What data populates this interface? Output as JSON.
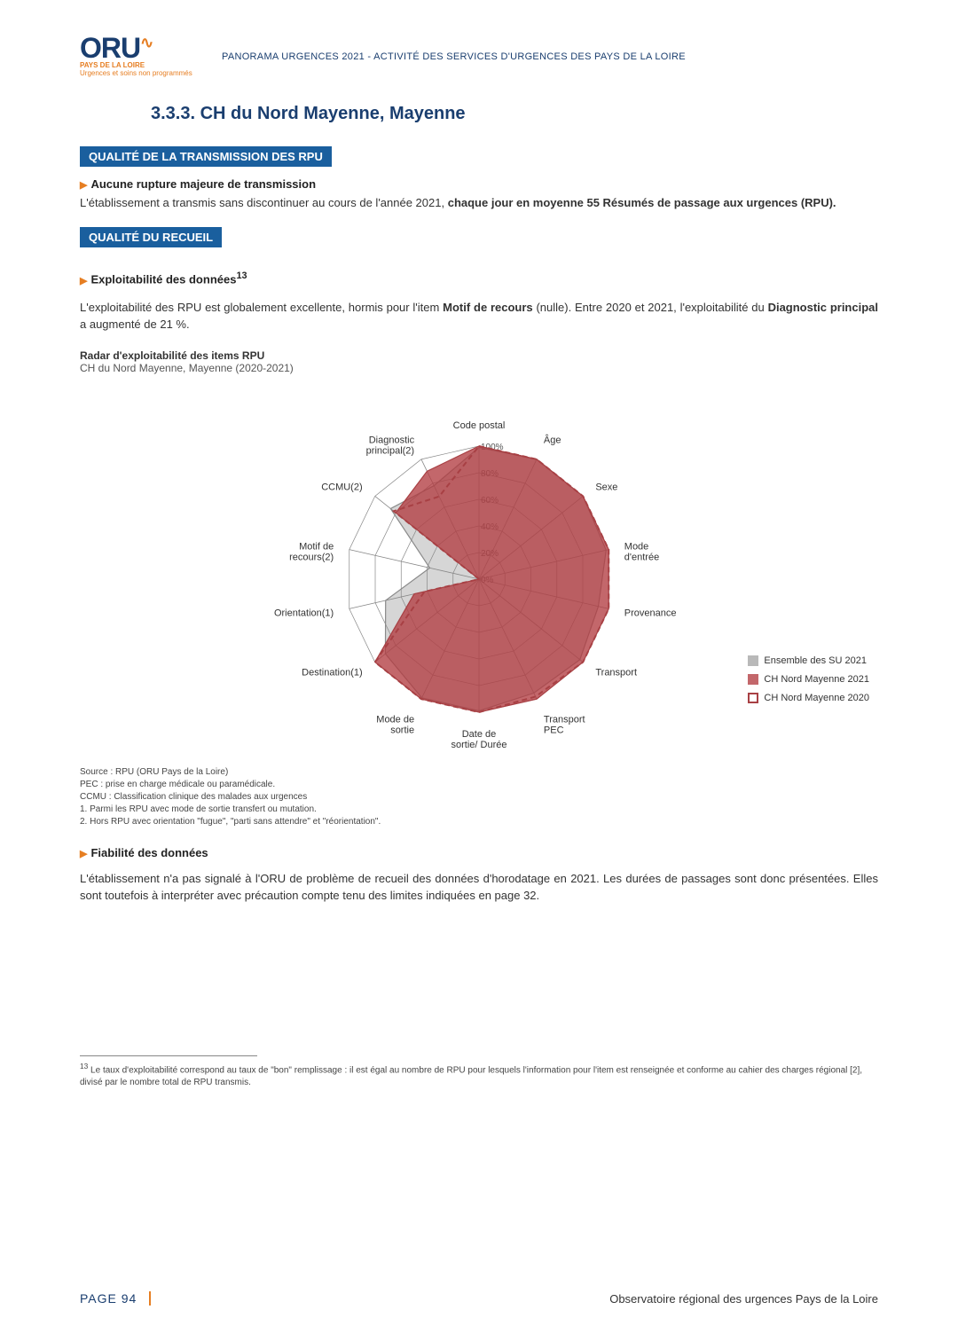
{
  "header": {
    "logo_main": "ORU",
    "logo_tag": "PAYS DE LA LOIRE",
    "logo_sub": "Urgences et soins non programmés",
    "title": "PANORAMA URGENCES 2021 - ACTIVITÉ DES SERVICES D'URGENCES DES PAYS DE LA LOIRE"
  },
  "section": {
    "number_title": "3.3.3.   CH du Nord Mayenne, Mayenne"
  },
  "block1": {
    "bar": "QUALITÉ DE LA TRANSMISSION DES RPU",
    "bullet": "Aucune rupture majeure de transmission",
    "para_pre": "L'établissement a transmis sans discontinuer au cours de l'année 2021, ",
    "para_bold": "chaque jour en moyenne 55 Résumés de passage aux urgences (RPU).",
    "para_post": ""
  },
  "block2": {
    "bar": "QUALITÉ DU RECUEIL",
    "bullet": "Exploitabilité des données",
    "bullet_sup": "13",
    "para_a": "L'exploitabilité des RPU est globalement excellente, hormis pour l'item ",
    "para_b_bold": "Motif de recours",
    "para_c": " (nulle). Entre 2020 et 2021, l'exploitabilité du ",
    "para_d_bold": "Diagnostic principal",
    "para_e": " a augmenté de 21 %."
  },
  "chart": {
    "type": "radar",
    "title": "Radar d'exploitabilité des items RPU",
    "subtitle": "CH du Nord Mayenne, Mayenne (2020-2021)",
    "axes": [
      "Code postal",
      "Âge",
      "Sexe",
      "Mode d'entrée",
      "Provenance",
      "Transport",
      "Transport PEC",
      "Date de sortie/ Durée",
      "Mode de sortie",
      "Destination(1)",
      "Orientation(1)",
      "Motif de recours(2)",
      "CCMU(2)",
      "Diagnostic principal(2)"
    ],
    "rings": [
      0,
      20,
      40,
      60,
      80,
      100
    ],
    "ring_labels": [
      "0%",
      "20%",
      "40%",
      "60%",
      "80%",
      "100%"
    ],
    "series": [
      {
        "name": "Ensemble des SU 2021",
        "color": "#8a8a8a",
        "fill": "rgba(138,138,138,0.35)",
        "dash": "none",
        "values": [
          99,
          100,
          100,
          98,
          92,
          97,
          95,
          99,
          99,
          90,
          72,
          38,
          85,
          78
        ]
      },
      {
        "name": "CH Nord Mayenne 2021",
        "color": "#a84044",
        "fill": "rgba(178,60,65,0.78)",
        "dash": "none",
        "values": [
          100,
          100,
          100,
          100,
          100,
          100,
          100,
          100,
          100,
          100,
          50,
          0,
          80,
          90
        ]
      },
      {
        "name": "CH Nord Mayenne 2020",
        "color": "#a84044",
        "fill": "none",
        "dash": "6 4",
        "values": [
          100,
          100,
          100,
          100,
          100,
          100,
          98,
          100,
          100,
          100,
          42,
          0,
          82,
          69
        ]
      }
    ],
    "background_color": "#ffffff",
    "grid_color": "#888888",
    "label_fontsize": 11
  },
  "notes": {
    "l1": "Source : RPU (ORU Pays de la Loire)",
    "l2": "PEC : prise en charge médicale ou paramédicale.",
    "l3": "CCMU : Classification clinique des malades aux urgences",
    "l4": "1. Parmi les RPU avec mode de sortie transfert ou mutation.",
    "l5": "2. Hors RPU avec orientation \"fugue\", \"parti sans attendre\" et \"réorientation\"."
  },
  "block3": {
    "bullet": "Fiabilité des données",
    "para": "L'établissement n'a pas signalé à l'ORU de problème de recueil des données d'horodatage en 2021. Les durées de passages sont donc présentées. Elles sont toutefois à interpréter avec précaution compte tenu des limites indiquées en page 32."
  },
  "footnote": {
    "sup": "13",
    "text": " Le taux d'exploitabilité correspond au taux de \"bon\" remplissage : il est égal au nombre de RPU pour lesquels l'information pour l'item est renseignée et conforme au cahier des charges régional [2], divisé par le nombre total de RPU transmis."
  },
  "footer": {
    "page": "PAGE 94",
    "org": "Observatoire régional des urgences Pays de la Loire"
  }
}
